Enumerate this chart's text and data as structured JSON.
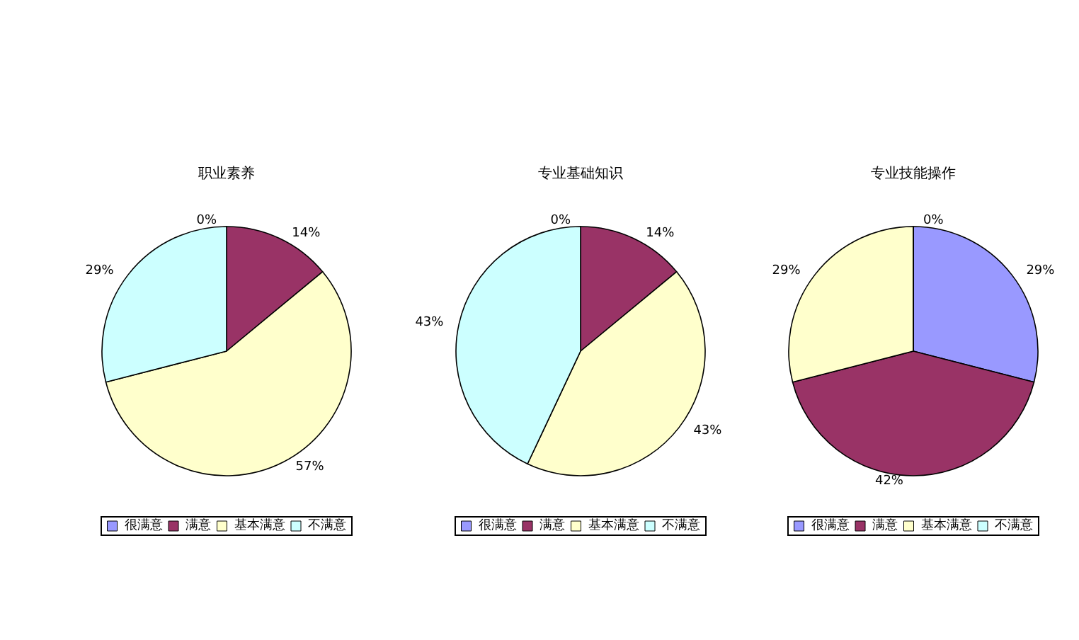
{
  "chart_data": [
    {
      "type": "pie",
      "title": "职业素养",
      "categories": [
        "很满意",
        "满意",
        "基本满意",
        "不满意"
      ],
      "values": [
        0,
        14,
        57,
        29
      ],
      "value_labels": [
        "0%",
        "14%",
        "57%",
        "29%"
      ],
      "colors": [
        "#9999ff",
        "#993366",
        "#ffffcc",
        "#ccffff"
      ],
      "legend": "bottom"
    },
    {
      "type": "pie",
      "title": "专业基础知识",
      "categories": [
        "很满意",
        "满意",
        "基本满意",
        "不满意"
      ],
      "values": [
        0,
        14,
        43,
        43
      ],
      "value_labels": [
        "0%",
        "14%",
        "43%",
        "43%"
      ],
      "colors": [
        "#9999ff",
        "#993366",
        "#ffffcc",
        "#ccffff"
      ],
      "legend": "bottom"
    },
    {
      "type": "pie",
      "title": "专业技能操作",
      "categories": [
        "很满意",
        "满意",
        "基本满意",
        "不满意"
      ],
      "values": [
        29,
        42,
        29,
        0
      ],
      "value_labels": [
        "29%",
        "42%",
        "29%",
        "0%"
      ],
      "colors": [
        "#9999ff",
        "#993366",
        "#ffffcc",
        "#ccffff"
      ],
      "legend": "bottom"
    }
  ]
}
